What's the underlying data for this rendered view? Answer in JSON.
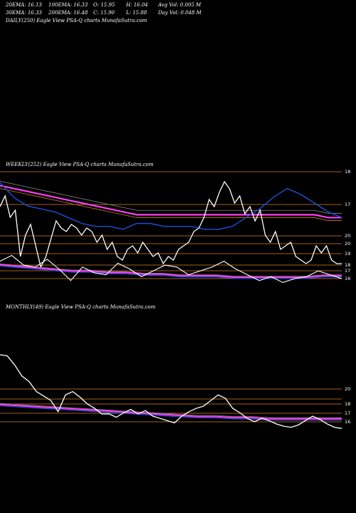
{
  "stats": {
    "ema20": "20EMA: 16.13",
    "ema100": "100EMA: 16.33",
    "open": "O: 15.95",
    "high": "H: 16.04",
    "avgvol": "Avg Vol: 0.005 M",
    "ema30": "30EMA: 16.33",
    "ema200": "200EMA: 16.48",
    "close": "C: 15.90",
    "low": "L: 15.88",
    "dayvol": "Day Vol: 0.048 M"
  },
  "colors": {
    "background": "#000000",
    "price": "#ffffff",
    "ema_fast": "#1e4fd8",
    "ema_slow": "#ff3df5",
    "ema_mid": "#c8782a",
    "grid": "#d9822b"
  },
  "chart_data": [
    {
      "type": "line",
      "title": "DAILY(250) Eagle  View  PSA-Q charts MunafaSutra.com",
      "x": [],
      "series": []
    },
    {
      "type": "line",
      "title": "WEEKLY(252) Eagle  View  PSA-Q charts MunafaSutra.com",
      "ylabels": [
        "18",
        "17",
        "20",
        "20",
        "19",
        "18",
        "17",
        "16"
      ],
      "series": [
        {
          "name": "price",
          "values": [
            17.6,
            17.9,
            17.3,
            17.5,
            16.2,
            16.8,
            17.1,
            16.5,
            15.9,
            16.2,
            16.7,
            17.2,
            17.0,
            16.9,
            17.1,
            17.0,
            16.8,
            17.0,
            16.9,
            16.6,
            16.8,
            16.4,
            16.6,
            16.2,
            16.1,
            16.4,
            16.5,
            16.3,
            16.6,
            16.4,
            16.2,
            16.3,
            16.0,
            16.2,
            16.1,
            16.4,
            16.5,
            16.6,
            16.9,
            17.0,
            17.3,
            17.8,
            17.6,
            18.0,
            18.3,
            18.1,
            17.7,
            17.9,
            17.4,
            17.6,
            17.2,
            17.5,
            16.8,
            16.6,
            16.9,
            16.4,
            16.5,
            16.6,
            16.2,
            16.1,
            16.0,
            16.1,
            16.5,
            16.3,
            16.5,
            16.1,
            16.0,
            16.0
          ]
        },
        {
          "name": "ema_fast",
          "values": [
            17.8,
            17.3,
            17.0,
            16.9,
            16.8,
            16.6,
            16.4,
            16.3,
            16.3,
            16.2,
            16.4,
            16.4,
            16.3,
            16.3,
            16.3,
            16.2,
            16.2,
            16.3,
            16.6,
            16.9,
            17.3,
            17.6,
            17.4,
            17.1,
            16.8,
            16.6
          ]
        },
        {
          "name": "ema_slow",
          "values": [
            17.7,
            17.6,
            17.5,
            17.4,
            17.3,
            17.2,
            17.1,
            17.0,
            16.9,
            16.8,
            16.7,
            16.7,
            16.7,
            16.7,
            16.7,
            16.7,
            16.7,
            16.7,
            16.7,
            16.7,
            16.7,
            16.7,
            16.7,
            16.7,
            16.6,
            16.6
          ]
        }
      ]
    },
    {
      "type": "line",
      "title": "MONTHLY(49) Eagle  View  PSA-Q charts MunafaSutra.com",
      "ylabels": [
        "20",
        "18",
        "17",
        "16"
      ],
      "series": [
        {
          "name": "price",
          "values": [
            22.5,
            22.4,
            21.6,
            20.6,
            20.1,
            19.2,
            18.8,
            18.4,
            17.4,
            18.9,
            19.2,
            18.7,
            18.1,
            17.7,
            17.2,
            17.2,
            16.9,
            17.3,
            17.6,
            17.2,
            17.5,
            17.0,
            16.8,
            16.6,
            16.4,
            17.0,
            17.4,
            17.7,
            17.9,
            18.4,
            18.9,
            18.6,
            17.7,
            17.3,
            16.8,
            16.5,
            16.8,
            16.6,
            16.3,
            16.1,
            16.0,
            16.2,
            16.6,
            17.0,
            16.7,
            16.3,
            16.0,
            15.9
          ]
        }
      ]
    }
  ]
}
